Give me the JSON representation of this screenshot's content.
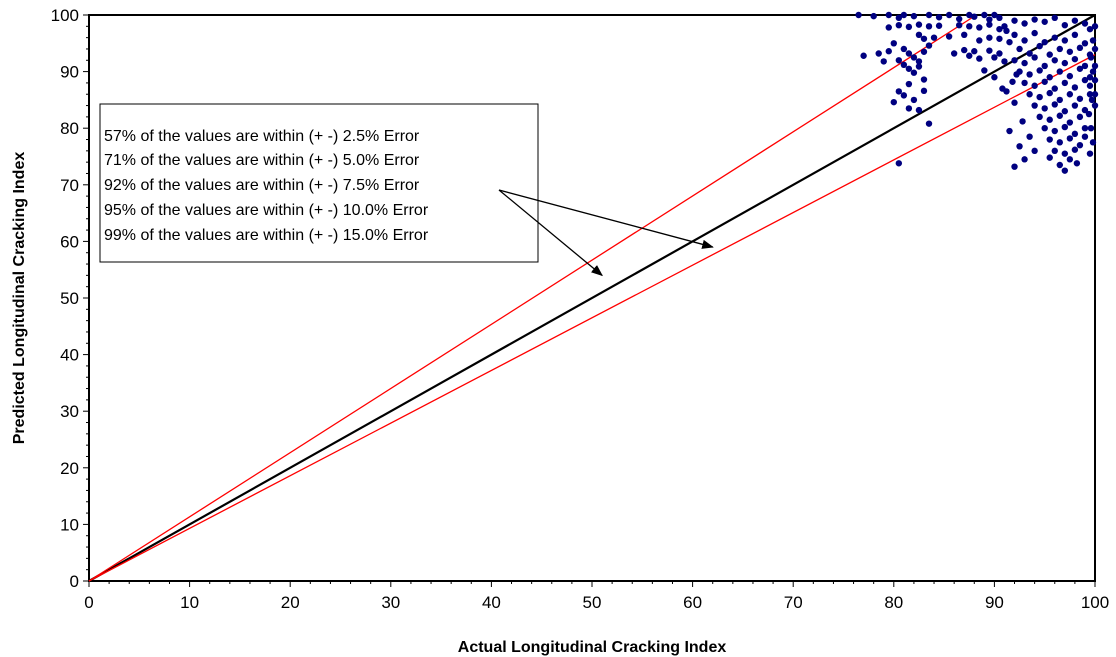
{
  "chart_data": {
    "type": "scatter",
    "xlabel": "Actual Longitudinal Cracking Index",
    "ylabel": "Predicted Longitudinal Cracking Index",
    "xlim": [
      0,
      100
    ],
    "ylim": [
      0,
      100
    ],
    "xticks": [
      "0",
      "10",
      "20",
      "30",
      "40",
      "50",
      "60",
      "70",
      "80",
      "90",
      "100"
    ],
    "yticks": [
      "0",
      "10",
      "20",
      "30",
      "40",
      "50",
      "60",
      "70",
      "80",
      "90",
      "100"
    ],
    "grid": false,
    "reference_lines": [
      {
        "kind": "equality",
        "from": [
          0,
          0
        ],
        "to": [
          100,
          100
        ],
        "color": "#000000"
      },
      {
        "kind": "upper-error-bound",
        "from": [
          0,
          0
        ],
        "to": [
          88.2,
          100
        ],
        "color": "#ff0000"
      },
      {
        "kind": "lower-error-bound",
        "from": [
          0,
          0
        ],
        "to": [
          100,
          93
        ],
        "color": "#ff0000"
      }
    ],
    "annotations": [
      "57% of the values are within (+ -)  2.5% Error",
      "71% of the values are within (+ -)  5.0% Error",
      "92% of the values are within (+ -)  7.5% Error",
      "95% of the values are within (+ -) 10.0% Error",
      "99% of the values are within (+ -) 15.0% Error"
    ],
    "arrow_targets": [
      [
        51,
        54
      ],
      [
        62,
        59
      ]
    ],
    "series": [
      {
        "marker_color": "#000080",
        "points": [
          [
            76.5,
            100
          ],
          [
            78,
            99.8
          ],
          [
            79.5,
            100
          ],
          [
            80.5,
            99.5
          ],
          [
            81,
            100
          ],
          [
            82,
            99.8
          ],
          [
            83.5,
            100
          ],
          [
            84.5,
            99.6
          ],
          [
            85.5,
            100
          ],
          [
            86.5,
            99.3
          ],
          [
            87.5,
            100
          ],
          [
            88,
            99.7
          ],
          [
            89,
            100
          ],
          [
            89.5,
            99.2
          ],
          [
            90,
            100
          ],
          [
            90.5,
            99.5
          ],
          [
            79.5,
            97.8
          ],
          [
            80.5,
            98.2
          ],
          [
            81.5,
            97.9
          ],
          [
            82.5,
            98.3
          ],
          [
            83.5,
            98
          ],
          [
            84.5,
            98.1
          ],
          [
            86.5,
            98.2
          ],
          [
            87.5,
            98
          ],
          [
            88.5,
            97.8
          ],
          [
            89.5,
            98.3
          ],
          [
            90.5,
            97.5
          ],
          [
            91,
            98
          ],
          [
            82.5,
            96.5
          ],
          [
            83,
            95.8
          ],
          [
            84,
            96
          ],
          [
            85.5,
            96.2
          ],
          [
            87,
            96.5
          ],
          [
            88.5,
            95.5
          ],
          [
            89.5,
            96
          ],
          [
            90.5,
            95.8
          ],
          [
            80,
            95
          ],
          [
            81,
            94
          ],
          [
            81.5,
            93.2
          ],
          [
            82,
            92.5
          ],
          [
            82.5,
            91.8
          ],
          [
            83,
            93.5
          ],
          [
            83.5,
            94.6
          ],
          [
            79.5,
            93.6
          ],
          [
            80.5,
            92
          ],
          [
            81,
            91.2
          ],
          [
            81.5,
            90.5
          ],
          [
            82,
            89.8
          ],
          [
            82.5,
            90.9
          ],
          [
            83,
            88.6
          ],
          [
            81.5,
            87.8
          ],
          [
            80.5,
            86.5
          ],
          [
            81,
            85.8
          ],
          [
            82,
            85
          ],
          [
            80,
            84.6
          ],
          [
            83,
            86.6
          ],
          [
            77,
            92.8
          ],
          [
            78.5,
            93.2
          ],
          [
            79,
            91.8
          ],
          [
            82.5,
            83.2
          ],
          [
            83.5,
            80.8
          ],
          [
            81.5,
            83.5
          ],
          [
            80.5,
            73.8
          ],
          [
            86,
            93.2
          ],
          [
            87,
            93.8
          ],
          [
            87.5,
            92.8
          ],
          [
            88,
            93.6
          ],
          [
            88.5,
            92.3
          ],
          [
            89.5,
            93.7
          ],
          [
            90,
            92.5
          ],
          [
            89,
            90.2
          ],
          [
            90,
            89
          ],
          [
            92,
            99
          ],
          [
            93,
            98.5
          ],
          [
            94,
            99.2
          ],
          [
            95,
            98.8
          ],
          [
            96,
            99.5
          ],
          [
            97,
            98.2
          ],
          [
            98,
            99
          ],
          [
            99,
            98.5
          ],
          [
            92,
            96.5
          ],
          [
            93,
            95.5
          ],
          [
            94,
            96.8
          ],
          [
            95,
            95.2
          ],
          [
            96,
            96
          ],
          [
            97,
            95.5
          ],
          [
            98,
            96.5
          ],
          [
            99,
            95
          ],
          [
            92.5,
            94
          ],
          [
            93.5,
            93.2
          ],
          [
            94.5,
            94.5
          ],
          [
            95.5,
            93
          ],
          [
            96.5,
            94
          ],
          [
            97.5,
            93.5
          ],
          [
            98.5,
            94.2
          ],
          [
            99.5,
            93
          ],
          [
            92,
            92
          ],
          [
            93,
            91.5
          ],
          [
            94,
            92.5
          ],
          [
            95,
            91
          ],
          [
            96,
            92
          ],
          [
            97,
            91.5
          ],
          [
            98,
            92.2
          ],
          [
            99,
            91
          ],
          [
            92.5,
            90
          ],
          [
            93.5,
            89.5
          ],
          [
            94.5,
            90.2
          ],
          [
            95.5,
            89
          ],
          [
            96.5,
            90
          ],
          [
            97.5,
            89.2
          ],
          [
            98.5,
            90.5
          ],
          [
            99.5,
            89
          ],
          [
            93,
            88
          ],
          [
            94,
            87.5
          ],
          [
            95,
            88.2
          ],
          [
            96,
            87
          ],
          [
            97,
            88
          ],
          [
            98,
            87.2
          ],
          [
            99,
            88.5
          ],
          [
            93.5,
            86
          ],
          [
            94.5,
            85.5
          ],
          [
            95.5,
            86.2
          ],
          [
            96.5,
            85
          ],
          [
            97.5,
            86
          ],
          [
            98.5,
            85.2
          ],
          [
            99.5,
            86
          ],
          [
            94,
            84
          ],
          [
            95,
            83.5
          ],
          [
            96,
            84.2
          ],
          [
            97,
            83
          ],
          [
            98,
            84
          ],
          [
            99,
            83.2
          ],
          [
            94.5,
            82
          ],
          [
            95.5,
            81.5
          ],
          [
            96.5,
            82.2
          ],
          [
            97.5,
            81
          ],
          [
            98.5,
            82
          ],
          [
            95,
            80
          ],
          [
            96,
            79.5
          ],
          [
            97,
            80.2
          ],
          [
            98,
            79
          ],
          [
            99,
            80
          ],
          [
            95.5,
            78
          ],
          [
            96.5,
            77.5
          ],
          [
            97.5,
            78.2
          ],
          [
            98.5,
            77
          ],
          [
            99,
            78.5
          ],
          [
            96,
            76
          ],
          [
            97,
            75.5
          ],
          [
            98,
            76.2
          ],
          [
            97.5,
            74.5
          ],
          [
            96.5,
            73.5
          ],
          [
            97,
            72.5
          ],
          [
            98.2,
            73.8
          ],
          [
            95.5,
            74.8
          ],
          [
            92,
            84.5
          ],
          [
            92.8,
            81.2
          ],
          [
            93.5,
            78.5
          ],
          [
            92.5,
            76.8
          ],
          [
            93,
            74.5
          ],
          [
            92,
            73.2
          ],
          [
            91.5,
            79.5
          ],
          [
            94,
            76
          ],
          [
            91.2,
            86.5
          ],
          [
            91.8,
            88.2
          ],
          [
            90.8,
            87
          ],
          [
            92.2,
            89.5
          ],
          [
            91,
            91.8
          ],
          [
            91.5,
            95.2
          ],
          [
            90.5,
            93.2
          ],
          [
            91.2,
            97.2
          ],
          [
            99.5,
            97.5
          ],
          [
            99.8,
            95.5
          ],
          [
            99.6,
            92.5
          ],
          [
            99.8,
            90
          ],
          [
            99.5,
            87.5
          ],
          [
            99.7,
            85
          ],
          [
            99.4,
            82.5
          ],
          [
            99.6,
            80
          ],
          [
            99.8,
            77.5
          ],
          [
            99.5,
            75.5
          ],
          [
            100,
            98
          ],
          [
            100,
            94
          ],
          [
            100,
            91
          ],
          [
            100,
            88.5
          ],
          [
            100,
            86
          ],
          [
            100,
            84
          ]
        ]
      }
    ]
  }
}
